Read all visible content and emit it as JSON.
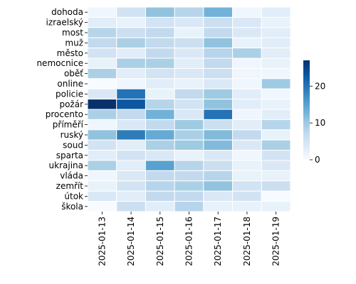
{
  "chart_data": {
    "type": "heatmap",
    "title": "",
    "xlabel": "",
    "ylabel": "",
    "x": [
      "2025-01-13",
      "2025-01-14",
      "2025-01-15",
      "2025-01-16",
      "2025-01-17",
      "2025-01-18",
      "2025-01-19"
    ],
    "y": [
      "dohoda",
      "izraelský",
      "most",
      "muž",
      "město",
      "nemocnice",
      "oběť",
      "online",
      "policie",
      "požár",
      "procento",
      "příměří",
      "ruský",
      "soud",
      "sparta",
      "ukrajina",
      "vláda",
      "zemřít",
      "útok",
      "škola"
    ],
    "values": [
      [
        1,
        5,
        11,
        8,
        13,
        1,
        3
      ],
      [
        3,
        2,
        5,
        4,
        6,
        4,
        2
      ],
      [
        8,
        6,
        7,
        2,
        7,
        4,
        3
      ],
      [
        7,
        9,
        7,
        6,
        11,
        2,
        3
      ],
      [
        5,
        3,
        7,
        4,
        8,
        9,
        3
      ],
      [
        2,
        9,
        9,
        3,
        7,
        1,
        2
      ],
      [
        9,
        3,
        5,
        4,
        6,
        1,
        1
      ],
      [
        0,
        1,
        3,
        2,
        4,
        1,
        10
      ],
      [
        4,
        20,
        2,
        7,
        10,
        3,
        1
      ],
      [
        27,
        23,
        8,
        5,
        11,
        3,
        2
      ],
      [
        9,
        7,
        13,
        4,
        20,
        1,
        3
      ],
      [
        1,
        4,
        7,
        10,
        6,
        3,
        8
      ],
      [
        11,
        19,
        14,
        9,
        12,
        7,
        2
      ],
      [
        5,
        3,
        9,
        10,
        12,
        4,
        9
      ],
      [
        3,
        5,
        4,
        2,
        4,
        1,
        5
      ],
      [
        9,
        3,
        15,
        8,
        6,
        2,
        4
      ],
      [
        1,
        4,
        7,
        7,
        8,
        2,
        2
      ],
      [
        2,
        5,
        8,
        9,
        11,
        5,
        6
      ],
      [
        4,
        3,
        7,
        7,
        4,
        5,
        0
      ],
      [
        0,
        6,
        3,
        8,
        2,
        2,
        2
      ]
    ],
    "colorbar": {
      "min": 0,
      "max": 27,
      "ticks": [
        0,
        10,
        20
      ]
    },
    "colormap": [
      "#f7fbff",
      "#deebf7",
      "#c6dbef",
      "#9ecae1",
      "#6baed6",
      "#4292c6",
      "#2171b5",
      "#08519c",
      "#08306b"
    ]
  }
}
